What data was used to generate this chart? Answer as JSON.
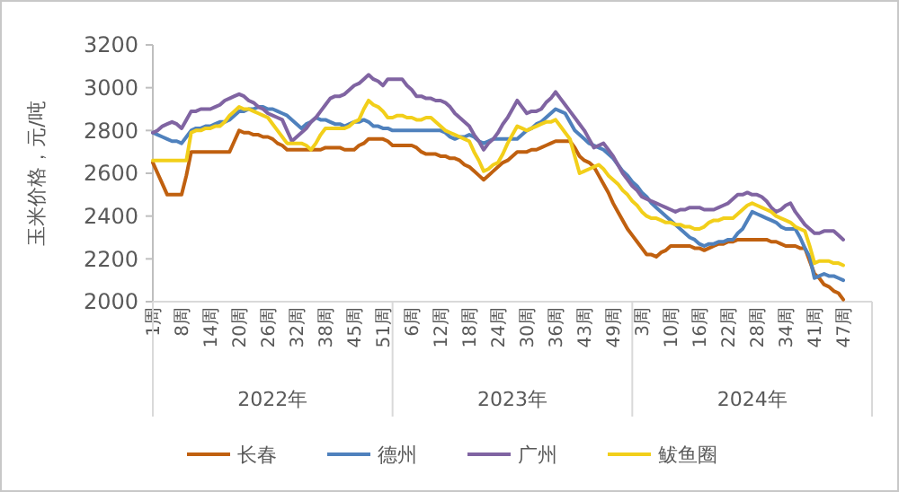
{
  "chart_data": {
    "type": "line",
    "ylabel": "玉米价格，元/吨",
    "categories": [
      "1周",
      null,
      null,
      null,
      null,
      null,
      "8周",
      null,
      null,
      null,
      null,
      null,
      "14周",
      null,
      null,
      null,
      null,
      null,
      "20周",
      null,
      null,
      null,
      null,
      null,
      "26周",
      null,
      null,
      null,
      null,
      null,
      "32周",
      null,
      null,
      null,
      null,
      null,
      "38周",
      null,
      null,
      null,
      null,
      null,
      "45周",
      null,
      null,
      null,
      null,
      null,
      "51周",
      null,
      null,
      null,
      null,
      null,
      "6周",
      null,
      null,
      null,
      null,
      null,
      "12周",
      null,
      null,
      null,
      null,
      null,
      "18周",
      null,
      null,
      null,
      null,
      null,
      "24周",
      null,
      null,
      null,
      null,
      null,
      "30周",
      null,
      null,
      null,
      null,
      null,
      "36周",
      null,
      null,
      null,
      null,
      null,
      "43周",
      null,
      null,
      null,
      null,
      null,
      "49周",
      null,
      null,
      null,
      null,
      null,
      "3周",
      null,
      null,
      null,
      null,
      null,
      "10周",
      null,
      null,
      null,
      null,
      null,
      "16周",
      null,
      null,
      null,
      null,
      null,
      "22周",
      null,
      null,
      null,
      null,
      null,
      "28周",
      null,
      null,
      null,
      null,
      null,
      "34周",
      null,
      null,
      null,
      null,
      null,
      "41周",
      null,
      null,
      null,
      null,
      null,
      "47周",
      null,
      null,
      null,
      null,
      null
    ],
    "ylim": [
      2000,
      3200
    ],
    "yticks": [
      2000,
      2200,
      2400,
      2600,
      2800,
      3000,
      3200
    ],
    "annotations": [
      "2022年",
      "2023年",
      "2024年"
    ],
    "legend": "bottom",
    "series": [
      {
        "name": "长春",
        "color": "#c0600f",
        "values": [
          2650,
          2600,
          2550,
          2500,
          2500,
          2500,
          2500,
          2590,
          2700,
          2700,
          2700,
          2700,
          2700,
          2700,
          2700,
          2700,
          2700,
          2750,
          2800,
          2790,
          2790,
          2780,
          2780,
          2770,
          2770,
          2760,
          2740,
          2730,
          2710,
          2710,
          2710,
          2710,
          2710,
          2710,
          2710,
          2710,
          2720,
          2720,
          2720,
          2720,
          2710,
          2710,
          2710,
          2730,
          2740,
          2760,
          2760,
          2760,
          2760,
          2750,
          2730,
          2730,
          2730,
          2730,
          2730,
          2720,
          2700,
          2690,
          2690,
          2690,
          2680,
          2680,
          2670,
          2670,
          2660,
          2640,
          2630,
          2610,
          2590,
          2570,
          2590,
          2610,
          2630,
          2650,
          2660,
          2680,
          2700,
          2700,
          2700,
          2710,
          2710,
          2720,
          2730,
          2740,
          2750,
          2750,
          2750,
          2750,
          2720,
          2680,
          2660,
          2650,
          2630,
          2590,
          2550,
          2510,
          2460,
          2420,
          2380,
          2340,
          2310,
          2280,
          2250,
          2220,
          2220,
          2210,
          2230,
          2240,
          2260,
          2260,
          2260,
          2260,
          2260,
          2250,
          2250,
          2240,
          2250,
          2260,
          2270,
          2270,
          2280,
          2280,
          2290,
          2290,
          2290,
          2290,
          2290,
          2290,
          2290,
          2280,
          2280,
          2270,
          2260,
          2260,
          2260,
          2250,
          2250,
          2190,
          2130,
          2110,
          2080,
          2070,
          2050,
          2040,
          2010,
          null,
          null,
          null,
          null,
          null
        ]
      },
      {
        "name": "德州",
        "color": "#4f81bd",
        "values": [
          2790,
          2780,
          2770,
          2760,
          2750,
          2750,
          2740,
          2770,
          2800,
          2810,
          2810,
          2820,
          2820,
          2830,
          2840,
          2840,
          2850,
          2870,
          2890,
          2890,
          2900,
          2900,
          2910,
          2910,
          2900,
          2900,
          2890,
          2880,
          2870,
          2850,
          2830,
          2810,
          2830,
          2840,
          2860,
          2850,
          2850,
          2840,
          2830,
          2830,
          2820,
          2830,
          2840,
          2840,
          2850,
          2840,
          2820,
          2820,
          2810,
          2810,
          2800,
          2800,
          2800,
          2800,
          2800,
          2800,
          2800,
          2800,
          2800,
          2800,
          2800,
          2790,
          2770,
          2760,
          2770,
          2770,
          2780,
          2770,
          2750,
          2740,
          2750,
          2760,
          2760,
          2760,
          2760,
          2760,
          2760,
          2780,
          2800,
          2810,
          2830,
          2840,
          2860,
          2880,
          2900,
          2890,
          2880,
          2840,
          2800,
          2780,
          2760,
          2740,
          2730,
          2720,
          2710,
          2690,
          2670,
          2640,
          2610,
          2590,
          2560,
          2540,
          2510,
          2490,
          2460,
          2440,
          2420,
          2400,
          2380,
          2360,
          2340,
          2320,
          2300,
          2290,
          2270,
          2260,
          2270,
          2270,
          2280,
          2280,
          2290,
          2290,
          2320,
          2340,
          2380,
          2420,
          2410,
          2400,
          2390,
          2380,
          2370,
          2350,
          2340,
          2340,
          2340,
          2300,
          2250,
          2210,
          2110,
          2120,
          2130,
          2120,
          2120,
          2110,
          2100,
          null,
          null,
          null,
          null,
          null
        ]
      },
      {
        "name": "广州",
        "color": "#8064a2",
        "values": [
          2790,
          2800,
          2820,
          2830,
          2840,
          2830,
          2810,
          2850,
          2890,
          2890,
          2900,
          2900,
          2900,
          2910,
          2920,
          2940,
          2950,
          2960,
          2970,
          2960,
          2940,
          2930,
          2910,
          2900,
          2880,
          2870,
          2860,
          2850,
          2800,
          2750,
          2770,
          2790,
          2810,
          2840,
          2860,
          2890,
          2920,
          2950,
          2960,
          2960,
          2970,
          2990,
          3010,
          3020,
          3040,
          3060,
          3040,
          3030,
          3010,
          3040,
          3040,
          3040,
          3040,
          3010,
          2990,
          2960,
          2960,
          2950,
          2950,
          2940,
          2940,
          2930,
          2910,
          2880,
          2860,
          2840,
          2820,
          2780,
          2750,
          2710,
          2740,
          2760,
          2790,
          2830,
          2860,
          2900,
          2940,
          2910,
          2880,
          2890,
          2890,
          2900,
          2930,
          2950,
          2980,
          2950,
          2920,
          2890,
          2860,
          2830,
          2800,
          2760,
          2720,
          2730,
          2740,
          2710,
          2680,
          2640,
          2600,
          2570,
          2540,
          2520,
          2490,
          2480,
          2470,
          2460,
          2450,
          2440,
          2430,
          2420,
          2430,
          2430,
          2440,
          2440,
          2440,
          2430,
          2430,
          2430,
          2440,
          2450,
          2460,
          2480,
          2500,
          2500,
          2510,
          2500,
          2500,
          2490,
          2470,
          2440,
          2420,
          2430,
          2450,
          2460,
          2420,
          2390,
          2360,
          2340,
          2320,
          2320,
          2330,
          2330,
          2330,
          2310,
          2290,
          null,
          null,
          null,
          null,
          null
        ]
      },
      {
        "name": "鲅鱼圈",
        "color": "#f2cf1a",
        "values": [
          2660,
          2660,
          2660,
          2660,
          2660,
          2660,
          2660,
          2660,
          2790,
          2800,
          2800,
          2810,
          2810,
          2820,
          2820,
          2840,
          2870,
          2890,
          2910,
          2900,
          2900,
          2890,
          2880,
          2870,
          2860,
          2830,
          2800,
          2770,
          2740,
          2740,
          2740,
          2740,
          2730,
          2710,
          2740,
          2780,
          2810,
          2810,
          2810,
          2810,
          2810,
          2820,
          2840,
          2850,
          2900,
          2940,
          2920,
          2910,
          2890,
          2860,
          2860,
          2870,
          2870,
          2860,
          2860,
          2850,
          2850,
          2860,
          2860,
          2840,
          2820,
          2800,
          2790,
          2780,
          2770,
          2760,
          2750,
          2700,
          2660,
          2610,
          2620,
          2640,
          2650,
          2690,
          2740,
          2780,
          2820,
          2810,
          2800,
          2810,
          2820,
          2830,
          2840,
          2840,
          2850,
          2820,
          2790,
          2760,
          2680,
          2600,
          2610,
          2620,
          2630,
          2640,
          2620,
          2590,
          2570,
          2550,
          2520,
          2500,
          2470,
          2450,
          2420,
          2400,
          2390,
          2390,
          2380,
          2370,
          2370,
          2360,
          2360,
          2350,
          2350,
          2340,
          2340,
          2350,
          2370,
          2380,
          2380,
          2390,
          2390,
          2390,
          2410,
          2430,
          2450,
          2460,
          2450,
          2440,
          2430,
          2420,
          2400,
          2390,
          2380,
          2370,
          2350,
          2340,
          2330,
          2260,
          2180,
          2190,
          2190,
          2190,
          2180,
          2180,
          2170,
          null,
          null,
          null,
          null,
          null
        ]
      }
    ]
  }
}
